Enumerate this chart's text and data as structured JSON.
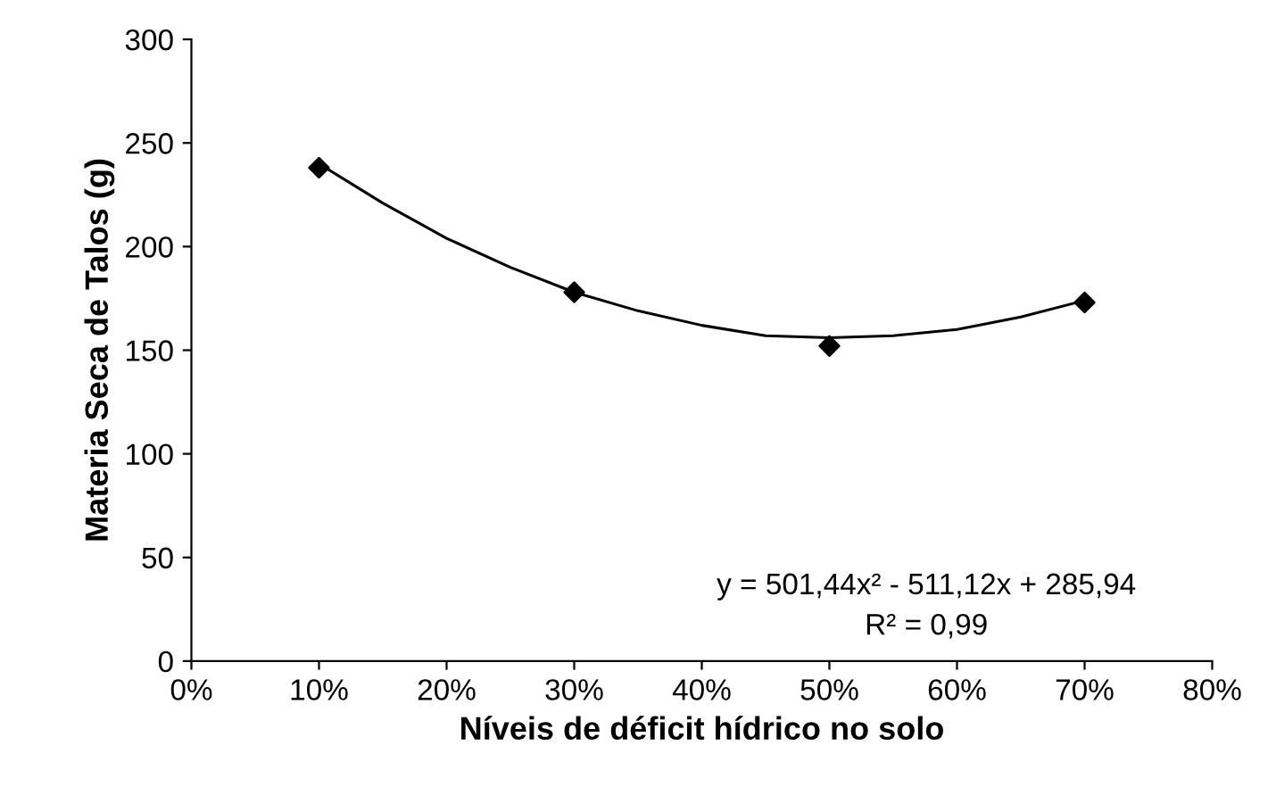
{
  "chart_data": {
    "type": "scatter",
    "xlabel": "Níveis de déficit hídrico no solo",
    "ylabel": "Materia Seca de Talos (g)",
    "x": [
      10,
      30,
      50,
      70
    ],
    "series": [
      {
        "color": "#000000",
        "marker": "diamond",
        "values": [
          238,
          178,
          152,
          173
        ]
      },
      {
        "type": "line",
        "color": "#000000",
        "marker": "none",
        "line_style": "solid",
        "x": [
          10,
          15,
          20,
          25,
          30,
          35,
          40,
          45,
          50,
          55,
          60,
          65,
          70
        ],
        "values": [
          240,
          221,
          204,
          190,
          178,
          169,
          162,
          157,
          156,
          157,
          160,
          166,
          174
        ]
      }
    ],
    "xlim": [
      0,
      80
    ],
    "xticks": [
      {
        "value": 0,
        "label": "0%"
      },
      {
        "value": 10,
        "label": "10%"
      },
      {
        "value": 20,
        "label": "20%"
      },
      {
        "value": 30,
        "label": "30%"
      },
      {
        "value": 40,
        "label": "40%"
      },
      {
        "value": 50,
        "label": "50%"
      },
      {
        "value": 60,
        "label": "60%"
      },
      {
        "value": 70,
        "label": "70%"
      },
      {
        "value": 80,
        "label": "80%"
      }
    ],
    "ylim": [
      0,
      300
    ],
    "yticks": [
      0,
      50,
      100,
      150,
      200,
      250,
      300
    ],
    "grid": false,
    "legend": false,
    "annotations": [
      "y = 501,44x² - 511,12x + 285,94",
      "R² = 0,99"
    ]
  }
}
